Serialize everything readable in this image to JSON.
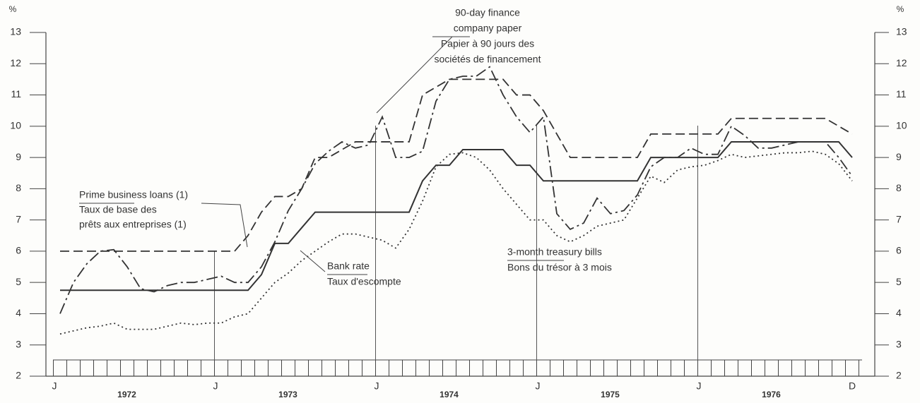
{
  "chart_data": {
    "type": "line",
    "y_label": "%",
    "y2_label": "%",
    "categories": [
      "J",
      null,
      null,
      null,
      null,
      null,
      null,
      null,
      null,
      null,
      null,
      null,
      "J",
      null,
      null,
      null,
      null,
      null,
      null,
      null,
      null,
      null,
      null,
      null,
      "J",
      null,
      null,
      null,
      null,
      null,
      null,
      null,
      null,
      null,
      null,
      null,
      "J",
      null,
      null,
      null,
      null,
      null,
      null,
      null,
      null,
      null,
      null,
      null,
      "J",
      null,
      null,
      null,
      null,
      null,
      null,
      null,
      null,
      null,
      null,
      "D"
    ],
    "years": [
      "1972",
      "1973",
      "1974",
      "1975",
      "1976"
    ],
    "ylim": [
      2,
      13
    ],
    "yticks": [
      2,
      3,
      4,
      5,
      6,
      7,
      8,
      9,
      10,
      11,
      12,
      13
    ],
    "y2lim": [
      2,
      13
    ],
    "y2ticks": [
      2,
      3,
      4,
      5,
      6,
      7,
      8,
      9,
      10,
      11,
      12,
      13
    ],
    "series": [
      {
        "label": [
          "Prime business loans (1)",
          "Taux de base des",
          "prêts aux entreprises (1)"
        ],
        "color": "#333333",
        "style": "dashed",
        "values": [
          6,
          6,
          6,
          6,
          6,
          6,
          6,
          6,
          6,
          6,
          6,
          6,
          6,
          6,
          6.5,
          7.25,
          7.75,
          7.75,
          8,
          9,
          9,
          9.25,
          9.5,
          9.5,
          9.5,
          9.5,
          9.5,
          11,
          11.25,
          11.5,
          11.5,
          11.5,
          11.5,
          11.5,
          11,
          11,
          10.5,
          9.75,
          9,
          9,
          9,
          9,
          9,
          9,
          9.75,
          9.75,
          9.75,
          9.75,
          9.75,
          9.75,
          10.25,
          10.25,
          10.25,
          10.25,
          10.25,
          10.25,
          10.25,
          10.25,
          10,
          9.75
        ]
      },
      {
        "label": [
          "Bank rate",
          "Taux d'escompte"
        ],
        "color": "#333333",
        "style": "solid",
        "values": [
          4.75,
          4.75,
          4.75,
          4.75,
          4.75,
          4.75,
          4.75,
          4.75,
          4.75,
          4.75,
          4.75,
          4.75,
          4.75,
          4.75,
          4.75,
          5.25,
          6.25,
          6.25,
          6.75,
          7.25,
          7.25,
          7.25,
          7.25,
          7.25,
          7.25,
          7.25,
          7.25,
          8.25,
          8.75,
          8.75,
          9.25,
          9.25,
          9.25,
          9.25,
          8.75,
          8.75,
          8.25,
          8.25,
          8.25,
          8.25,
          8.25,
          8.25,
          8.25,
          8.25,
          9,
          9,
          9,
          9,
          9,
          9,
          9.5,
          9.5,
          9.5,
          9.5,
          9.5,
          9.5,
          9.5,
          9.5,
          9.5,
          9
        ]
      },
      {
        "label": [
          "90-day finance",
          "company paper",
          "Papier à 90 jours des",
          "sociétés de financement"
        ],
        "color": "#333333",
        "style": "dashdot",
        "values": [
          4,
          5,
          5.6,
          6,
          6.05,
          5.5,
          4.8,
          4.7,
          4.9,
          5,
          5,
          5.1,
          5.2,
          5,
          5,
          5.5,
          6.3,
          7.3,
          8,
          8.8,
          9.2,
          9.5,
          9.3,
          9.4,
          10.3,
          9,
          9,
          9.2,
          10.8,
          11.5,
          11.6,
          11.6,
          11.9,
          11,
          10.3,
          9.8,
          10.3,
          7.2,
          6.7,
          6.9,
          7.7,
          7.2,
          7.3,
          7.8,
          8.7,
          9,
          9,
          9.3,
          9.1,
          9.1,
          10,
          9.7,
          9.3,
          9.3,
          9.4,
          9.5,
          9.5,
          9.5,
          9,
          8.4
        ]
      },
      {
        "label": [
          "3-month treasury bills",
          "Bons du trésor à 3 mois"
        ],
        "color": "#333333",
        "style": "dotted",
        "values": [
          3.35,
          3.45,
          3.55,
          3.6,
          3.7,
          3.5,
          3.5,
          3.5,
          3.6,
          3.7,
          3.65,
          3.7,
          3.7,
          3.9,
          4,
          4.5,
          5,
          5.3,
          5.7,
          6,
          6.3,
          6.55,
          6.55,
          6.45,
          6.35,
          6.1,
          6.7,
          7.6,
          8.7,
          9.1,
          9.15,
          9,
          8.6,
          8,
          7.5,
          7,
          7,
          6.5,
          6.3,
          6.5,
          6.8,
          6.9,
          7,
          7.7,
          8.4,
          8.2,
          8.6,
          8.7,
          8.75,
          8.9,
          9.1,
          9,
          9.05,
          9.1,
          9.15,
          9.15,
          9.2,
          9.1,
          8.8,
          8.25
        ]
      }
    ]
  }
}
